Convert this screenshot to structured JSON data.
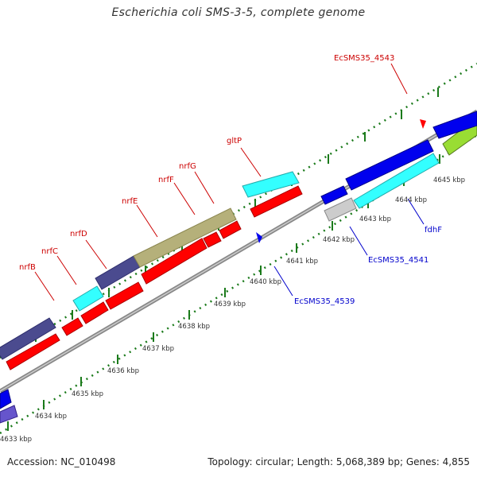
{
  "header": {
    "title": "Escherichia coli SMS-3-5, complete genome"
  },
  "footer": {
    "accession": "Accession: NC_010498",
    "summary": "Topology: circular; Length: 5,068,389 bp; Genes: 4,855"
  },
  "colors": {
    "backbone": "#888888",
    "tick": "#1a7a1a",
    "red_gene": "#ff0000",
    "cyan_gene": "#33ffff",
    "blue_gene": "#0000ee",
    "slate_gene": "#4b4b8f",
    "olive_gene": "#b5b07a",
    "grey_gene": "#cccccc",
    "lime_gene": "#99dd33",
    "label_red": "#cc0000",
    "label_blue": "#0000cc"
  },
  "kbp_labels": [
    "4633 kbp",
    "4634 kbp",
    "4635 kbp",
    "4636 kbp",
    "4637 kbp",
    "4638 kbp",
    "4639 kbp",
    "4640 kbp",
    "4641 kbp",
    "4642 kbp",
    "4643 kbp",
    "4644 kbp",
    "4645 kbp"
  ],
  "gene_labels_top": [
    "nrfB",
    "nrfC",
    "nrfD",
    "nrfE",
    "nrfF",
    "nrfG",
    "gltP",
    "EcSMS35_4543"
  ],
  "gene_labels_bottom": [
    "EcSMS35_4539",
    "EcSMS35_4541",
    "fdhF"
  ]
}
